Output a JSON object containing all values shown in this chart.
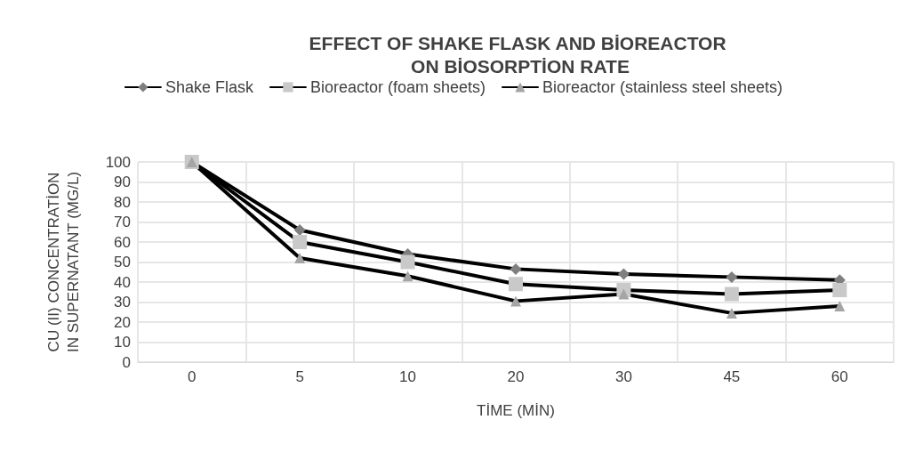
{
  "chart_data": {
    "type": "line",
    "title": "EFFECT OF SHAKE FLASK AND BİOREACTOR ON BİOSORPTİON RATE",
    "xlabel": "TİME (MİN)",
    "ylabel": "CU (II) CONCENTRATİON IN SUPERNATANT (MG/L)",
    "categories": [
      "0",
      "5",
      "10",
      "20",
      "30",
      "45",
      "60"
    ],
    "series": [
      {
        "name": "Shake Flask",
        "color": "#7f7f7f",
        "marker": "diamond",
        "values": [
          100,
          66,
          54,
          46.5,
          44,
          42.5,
          41
        ]
      },
      {
        "name": "Bioreactor (foam sheets)",
        "color": "#c9c9c9",
        "marker": "square",
        "values": [
          100,
          60,
          50,
          39,
          36,
          34,
          36
        ]
      },
      {
        "name": "Bioreactor (stainless steel sheets)",
        "color": "#a5a5a5",
        "marker": "triangle",
        "values": [
          100,
          52,
          43,
          30.5,
          34,
          24.5,
          28
        ]
      }
    ],
    "ylim": [
      0,
      100
    ],
    "yticks": [
      0,
      10,
      20,
      30,
      40,
      50,
      60,
      70,
      80,
      90,
      100
    ],
    "grid": true,
    "legend": "top"
  }
}
